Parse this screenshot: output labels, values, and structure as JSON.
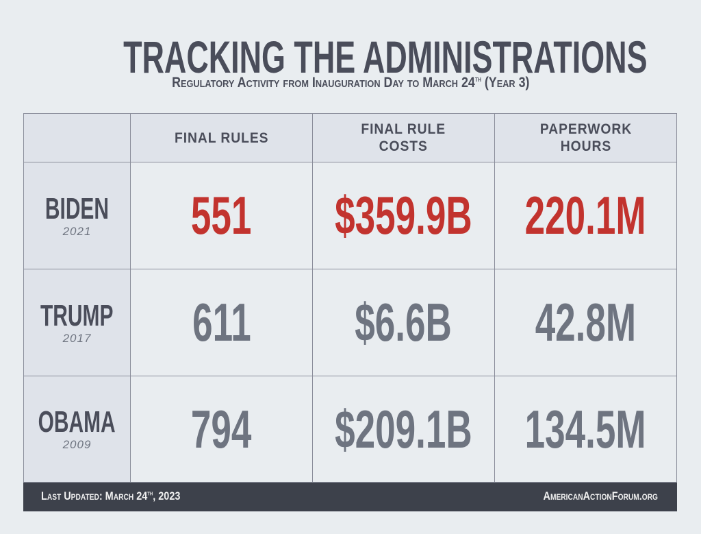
{
  "title": "TRACKING THE ADMINISTRATIONS",
  "subtitle": {
    "text": "Regulatory Activity from Inauguration Day to March 24",
    "sup": "th",
    "suffix": " (Year 3)"
  },
  "chart_data": {
    "type": "table",
    "columns": [
      "",
      "FINAL RULES",
      "FINAL RULE\nCOSTS",
      "PAPERWORK\nHOURS"
    ],
    "rows": [
      {
        "name": "BIDEN",
        "year": "2021",
        "final_rules": "551",
        "final_rule_costs": "$359.9B",
        "paperwork_hours": "220.1M",
        "highlight": true
      },
      {
        "name": "TRUMP",
        "year": "2017",
        "final_rules": "611",
        "final_rule_costs": "$6.6B",
        "paperwork_hours": "42.8M",
        "highlight": false
      },
      {
        "name": "OBAMA",
        "year": "2009",
        "final_rules": "794",
        "final_rule_costs": "$209.1B",
        "paperwork_hours": "134.5M",
        "highlight": false
      }
    ]
  },
  "colors": {
    "highlight": "#c2332e",
    "normal": "#6e7480",
    "footer_bg": "#3d414b"
  },
  "footer": {
    "updated_prefix": "Last Updated: March 24",
    "updated_sup": "th",
    "updated_suffix": ", 2023",
    "site": "AmericanActionForum.org"
  }
}
